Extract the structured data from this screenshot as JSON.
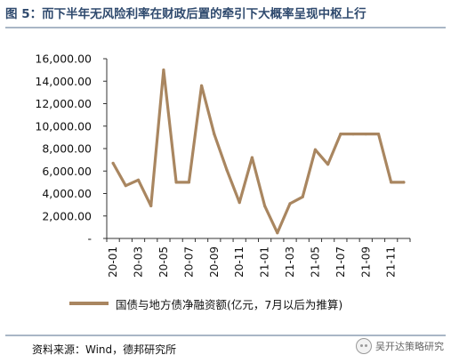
{
  "header": {
    "title": "图 5：而下半年无风险利率在财政后置的牵引下大概率呈现中枢上行"
  },
  "footer": {
    "source": "资料来源：Wind，德邦研究所",
    "watermark": "吴开达策略研究"
  },
  "colors": {
    "line": "#a98660",
    "title": "#2f4a6e",
    "rule": "#a9b6c6"
  },
  "chart_data": {
    "type": "line",
    "title": "",
    "xlabel": "",
    "ylabel": "",
    "ylim": [
      0,
      16000
    ],
    "yticks": [
      0,
      2000,
      4000,
      6000,
      8000,
      10000,
      12000,
      14000,
      16000
    ],
    "ytick_labels": [
      "-",
      "2,000.00",
      "4,000.00",
      "6,000.00",
      "8,000.00",
      "10,000.00",
      "12,000.00",
      "14,000.00",
      "16,000.00"
    ],
    "grid": false,
    "legend_position": "bottom",
    "x": [
      "20-01",
      "20-02",
      "20-03",
      "20-04",
      "20-05",
      "20-06",
      "20-07",
      "20-08",
      "20-09",
      "20-10",
      "20-11",
      "20-12",
      "21-01",
      "21-02",
      "21-03",
      "21-04",
      "21-05",
      "21-06",
      "21-07",
      "21-08",
      "21-09",
      "21-10",
      "21-11",
      "21-12"
    ],
    "x_tick_labels": [
      "20-01",
      "",
      "20-03",
      "",
      "20-05",
      "",
      "20-07",
      "",
      "20-09",
      "",
      "20-11",
      "",
      "21-01",
      "",
      "21-03",
      "",
      "21-05",
      "",
      "21-07",
      "",
      "21-09",
      "",
      "21-11",
      ""
    ],
    "series": [
      {
        "name": "国债与地方债净融资额(亿元，7月以后为推算)",
        "values": [
          6700,
          4700,
          5200,
          2900,
          15000,
          5000,
          5000,
          13600,
          9300,
          6100,
          3200,
          7200,
          2900,
          500,
          3100,
          3700,
          7900,
          6600,
          9300,
          9300,
          9300,
          9300,
          5000,
          5000
        ]
      }
    ]
  }
}
